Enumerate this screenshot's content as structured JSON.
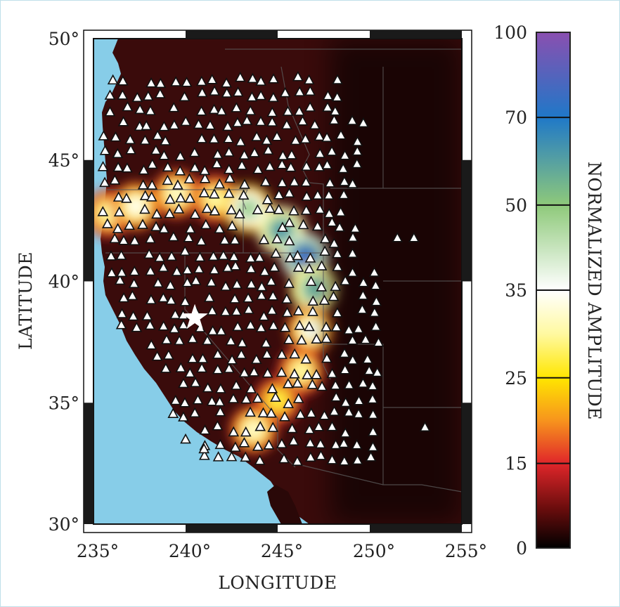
{
  "chart_data": {
    "type": "heatmap",
    "title": "",
    "xlabel": "LONGITUDE",
    "ylabel": "LATITUDE",
    "colorbar_label": "NORMALIZED AMPLITUDE",
    "xlim": [
      235,
      255
    ],
    "ylim": [
      30,
      50
    ],
    "x_ticks": [
      235,
      240,
      245,
      250,
      255
    ],
    "y_ticks": [
      30,
      35,
      40,
      45,
      50
    ],
    "x_tick_labels": [
      "235°",
      "240°",
      "245°",
      "250°",
      "255°"
    ],
    "y_tick_labels": [
      "30°",
      "35°",
      "40°",
      "45°",
      "50°"
    ],
    "colorbar_ticks": [
      0,
      15,
      25,
      35,
      50,
      70,
      100
    ],
    "colorbar_tick_labels": [
      "0",
      "15",
      "25",
      "35",
      "50",
      "70",
      "100"
    ],
    "colorbar_stops": [
      {
        "value": 0,
        "color": "#000000"
      },
      {
        "value": 7,
        "color": "#6b0d0d"
      },
      {
        "value": 15,
        "color": "#e0262a"
      },
      {
        "value": 20,
        "color": "#f7941d"
      },
      {
        "value": 25,
        "color": "#ffe600"
      },
      {
        "value": 30,
        "color": "#fff9a0"
      },
      {
        "value": 35,
        "color": "#ffffff"
      },
      {
        "value": 50,
        "color": "#8ec97a"
      },
      {
        "value": 70,
        "color": "#1f78c8"
      },
      {
        "value": 100,
        "color": "#8a4fb0"
      }
    ],
    "source": {
      "name": "source-star",
      "lon": 240.5,
      "lat": 38.5
    },
    "anomalies": [
      {
        "lon": 235.8,
        "lat": 42.8,
        "amplitude": 30
      },
      {
        "lon": 237.3,
        "lat": 43.1,
        "amplitude": 34
      },
      {
        "lon": 239.5,
        "lat": 43.6,
        "amplitude": 32
      },
      {
        "lon": 241.6,
        "lat": 43.4,
        "amplitude": 30
      },
      {
        "lon": 243.4,
        "lat": 43.0,
        "amplitude": 48
      },
      {
        "lon": 245.2,
        "lat": 42.1,
        "amplitude": 62
      },
      {
        "lon": 246.5,
        "lat": 41.0,
        "amplitude": 80
      },
      {
        "lon": 247.0,
        "lat": 39.7,
        "amplitude": 58
      },
      {
        "lon": 246.8,
        "lat": 38.0,
        "amplitude": 36
      },
      {
        "lon": 246.3,
        "lat": 36.3,
        "amplitude": 30
      },
      {
        "lon": 245.0,
        "lat": 35.1,
        "amplitude": 27
      },
      {
        "lon": 243.7,
        "lat": 33.9,
        "amplitude": 32
      }
    ],
    "land_color": "#3a0b0b",
    "ocean_color": "#87cde8",
    "station_marker": "triangle-icon",
    "station_count_approx": 430
  }
}
